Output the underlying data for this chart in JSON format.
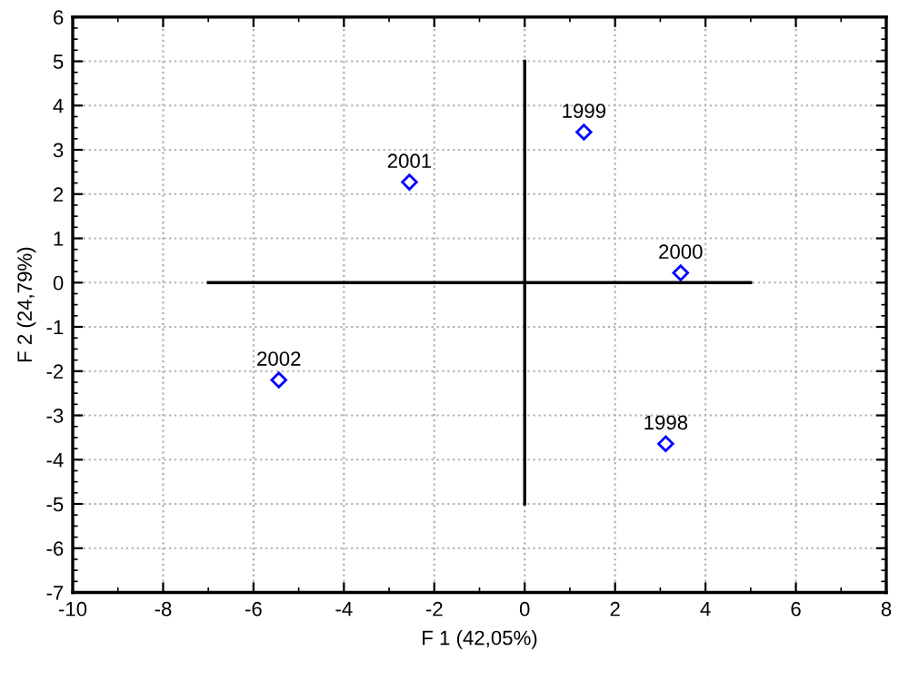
{
  "chart_data": {
    "type": "scatter",
    "xlabel": "F 1 (42,05%)",
    "ylabel": "F 2 (24,79%)",
    "xlim": [
      -10,
      8
    ],
    "xticks": [
      -10,
      -8,
      -6,
      -4,
      -2,
      0,
      2,
      4,
      6,
      8
    ],
    "ylim": [
      -7,
      6
    ],
    "yticks": [
      -7,
      -6,
      -5,
      -4,
      -3,
      -2,
      -1,
      0,
      1,
      2,
      3,
      4,
      5,
      6
    ],
    "grid": true,
    "marker": "diamond",
    "series": [
      {
        "color": "#0000ff",
        "x": [
          3.12,
          1.31,
          3.45,
          -2.55,
          -5.44
        ],
        "values": [
          -3.64,
          3.4,
          0.22,
          2.27,
          -2.2
        ]
      },
      {
        "type": "line",
        "color": "#000000",
        "x": [
          -7,
          5
        ],
        "values": [
          0,
          0
        ],
        "marker": "none"
      },
      {
        "type": "line",
        "color": "#000000",
        "x": [
          0,
          0
        ],
        "values": [
          -5,
          5
        ],
        "marker": "none"
      }
    ],
    "annotations": [
      {
        "text": "1998",
        "x": 3.12,
        "y": -3.64
      },
      {
        "text": "1999",
        "x": 1.31,
        "y": 3.4
      },
      {
        "text": "2000",
        "x": 3.45,
        "y": 0.22
      },
      {
        "text": "2001",
        "x": -2.55,
        "y": 2.27
      },
      {
        "text": "2002",
        "x": -5.44,
        "y": -2.2
      }
    ]
  }
}
